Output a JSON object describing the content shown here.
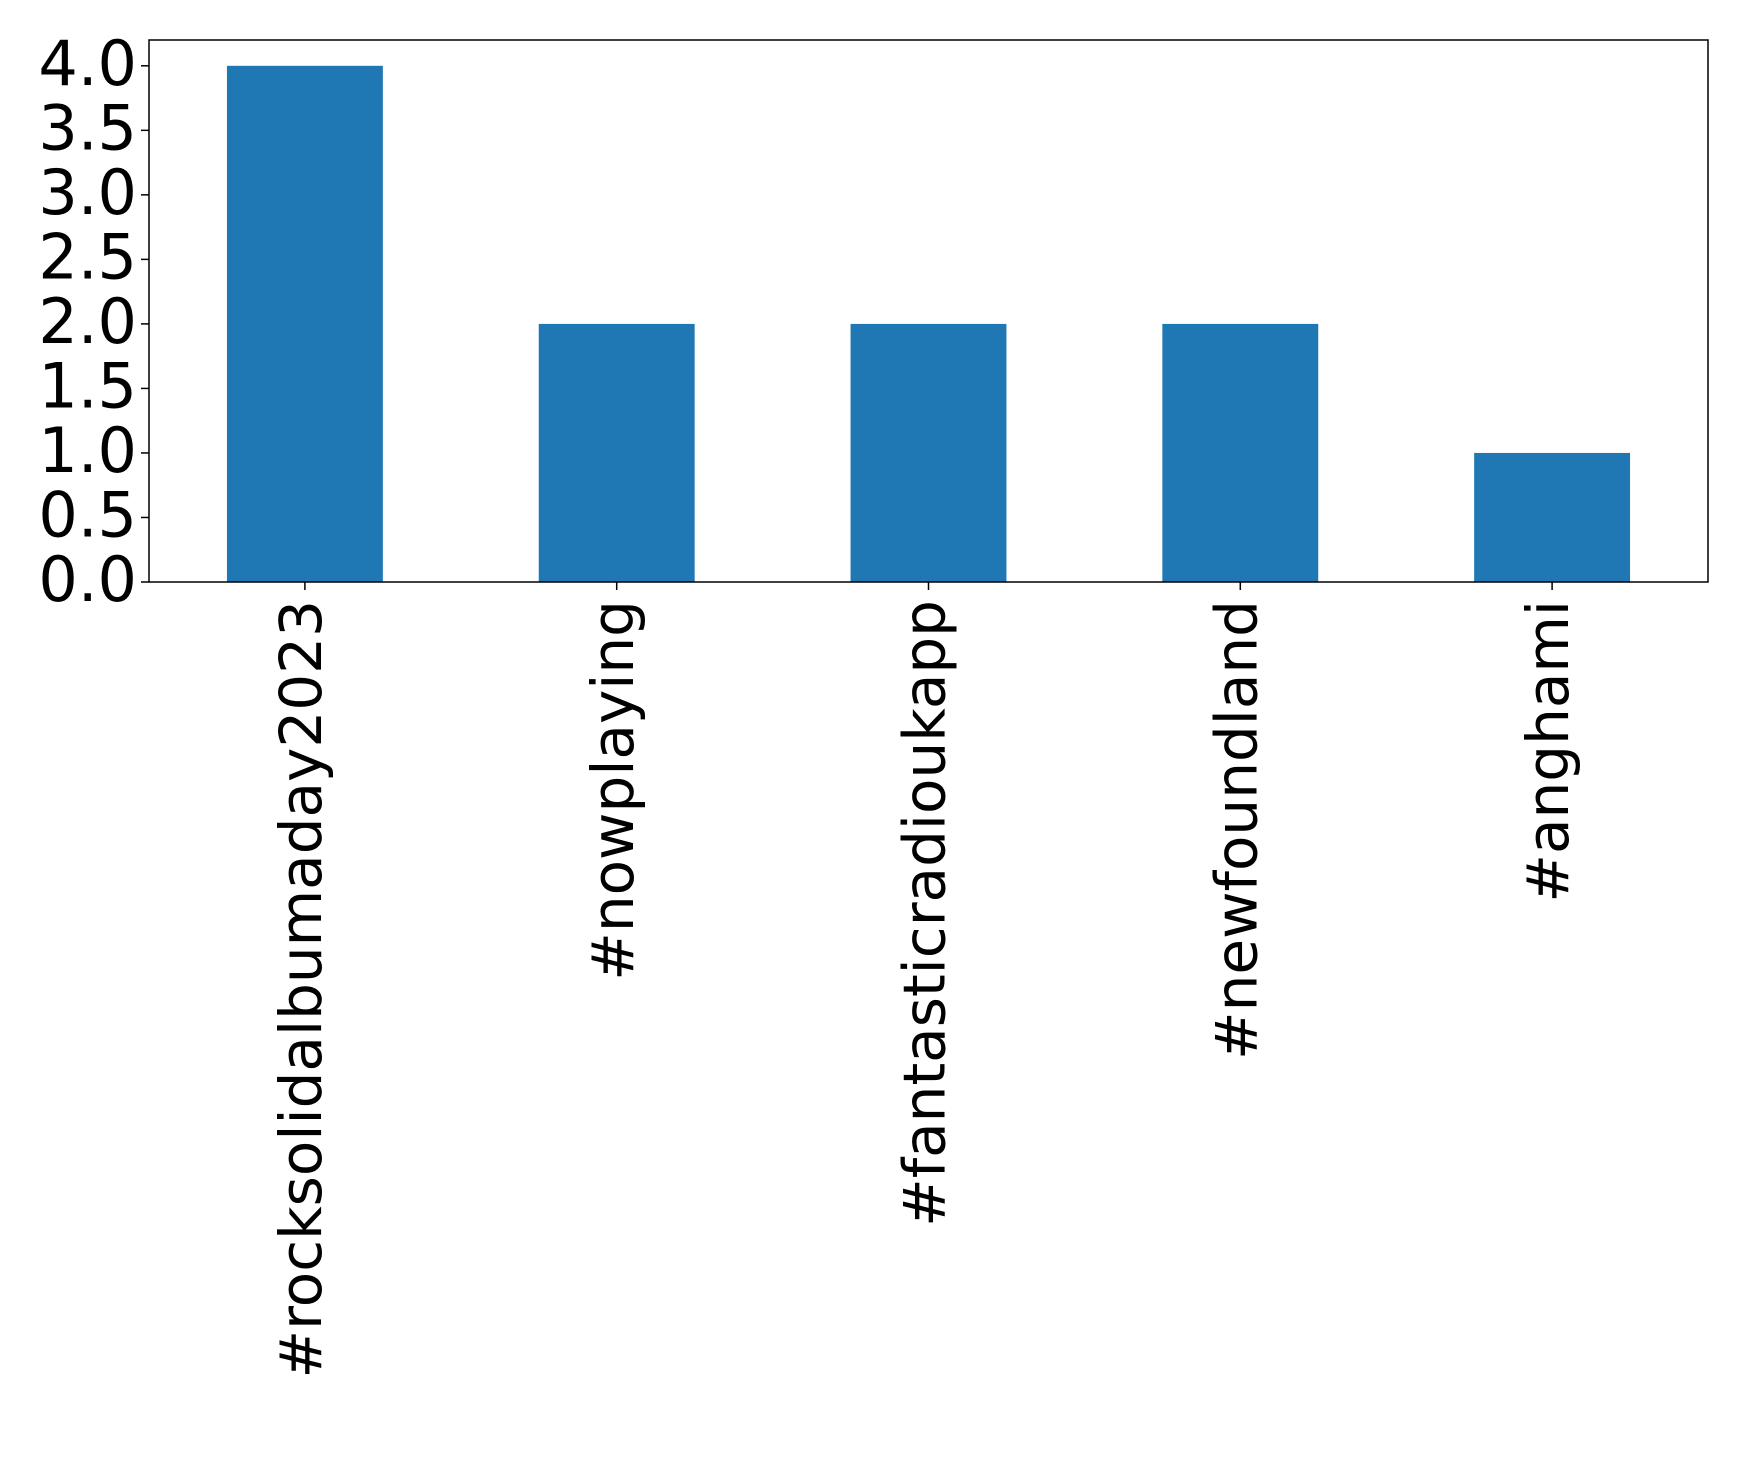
{
  "chart_data": {
    "type": "bar",
    "categories": [
      "#rocksolidalbumaday2023",
      "#nowplaying",
      "#fantasticradioukapp",
      "#newfoundland",
      "#anghami"
    ],
    "values": [
      4,
      2,
      2,
      2,
      1
    ],
    "color": "#1f77b4",
    "ylim": [
      0,
      4.2
    ],
    "yticks": [
      {
        "value": 0,
        "label": "0.0"
      },
      {
        "value": 0.5,
        "label": "0.5"
      },
      {
        "value": 1,
        "label": "1.0"
      },
      {
        "value": 1.5,
        "label": "1.5"
      },
      {
        "value": 2,
        "label": "2.0"
      },
      {
        "value": 2.5,
        "label": "2.5"
      },
      {
        "value": 3,
        "label": "3.0"
      },
      {
        "value": 3.5,
        "label": "3.5"
      },
      {
        "value": 4,
        "label": "4.0"
      }
    ],
    "grid": false
  }
}
